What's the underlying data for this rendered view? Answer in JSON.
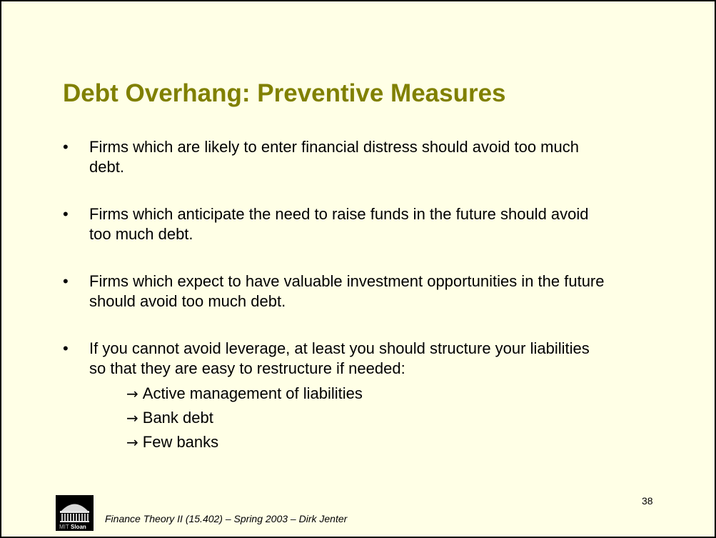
{
  "slide": {
    "title": "Debt Overhang: Preventive Measures",
    "bullet_marker": "•",
    "bullets": [
      {
        "lines": [
          "Firms which are likely to enter financial distress should avoid too much",
          "debt."
        ]
      },
      {
        "lines": [
          "Firms which anticipate the need to raise funds in the future should avoid",
          "too much debt."
        ]
      },
      {
        "lines": [
          "Firms which expect to have valuable investment opportunities in the future",
          "should avoid too much debt."
        ]
      },
      {
        "lines": [
          "If you cannot avoid leverage, at least you should structure your liabilities",
          "so that they are easy to restructure if needed:"
        ],
        "sub_arrow": "→",
        "sub_items": [
          "Active management of liabilities",
          "Bank debt",
          "Few banks"
        ]
      }
    ],
    "logo": {
      "icon": "mit-dome-icon",
      "text_mit": "MIT",
      "text_sloan": "Sloan"
    },
    "footer": "Finance Theory II (15.402) – Spring 2003 – Dirk Jenter",
    "page_number": "38"
  },
  "colors": {
    "background": "#ffffe6",
    "title": "#808000",
    "text": "#000000",
    "border": "#000000"
  }
}
